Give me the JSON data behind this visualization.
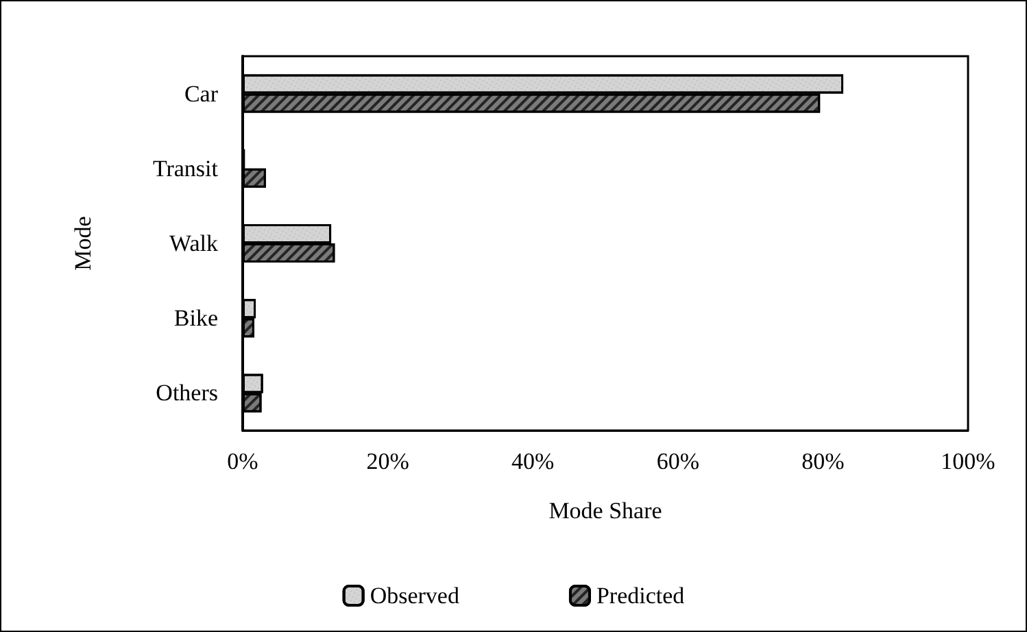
{
  "chart_data": {
    "type": "bar",
    "orientation": "horizontal",
    "xlabel": "Mode Share",
    "ylabel": "Mode",
    "categories": [
      "Car",
      "Transit",
      "Walk",
      "Bike",
      "Others"
    ],
    "series": [
      {
        "name": "Observed",
        "color": "#d4d4d4",
        "values": [
          82.8,
          0.3,
          12.2,
          1.8,
          2.8
        ]
      },
      {
        "name": "Predicted",
        "color": "#7a7a7a",
        "values": [
          79.6,
          3.2,
          12.7,
          1.6,
          2.6
        ]
      }
    ],
    "xlim": [
      0,
      100
    ],
    "xticks": [
      {
        "value": 0,
        "label": "0%"
      },
      {
        "value": 20,
        "label": "20%"
      },
      {
        "value": 40,
        "label": "40%"
      },
      {
        "value": 60,
        "label": "60%"
      },
      {
        "value": 80,
        "label": "80%"
      },
      {
        "value": 100,
        "label": "100%"
      }
    ],
    "grid": false,
    "legend": "bottom"
  }
}
